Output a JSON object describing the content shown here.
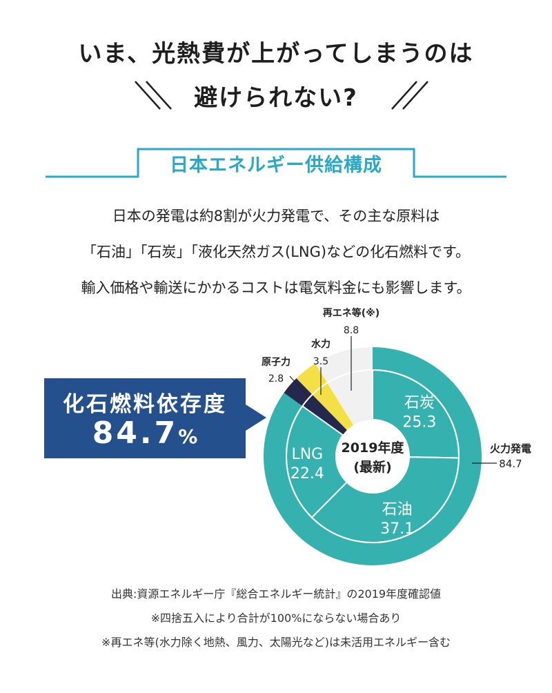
{
  "headline": {
    "line1": "いま、光熱費が上がってしまうのは",
    "line2": "避けられない?"
  },
  "section": {
    "title": "日本エネルギー供給構成"
  },
  "body": {
    "line1": "日本の発電は約8割が火力発電で、その主な原料は",
    "line2": "「石油」「石炭」「液化天然ガス(LNG)などの化石燃料です。",
    "line3": "輸入価格や輸送にかかるコストは電気料金にも影響します。"
  },
  "badge": {
    "label": "化石燃料依存度",
    "value": "84.7",
    "unit": "%"
  },
  "chart_data": {
    "type": "pie",
    "center_label": [
      "2019年度",
      "(最新)"
    ],
    "outer": [
      {
        "name": "火力発電",
        "value": 84.7,
        "color": "#35b2b0"
      },
      {
        "name": "原子力",
        "value": 2.8,
        "color": "#24284e"
      },
      {
        "name": "水力",
        "value": 3.5,
        "color": "#f2e046"
      },
      {
        "name": "再エネ等(※)",
        "value": 8.8,
        "color": "#f1f1f1"
      }
    ],
    "inner": [
      {
        "name": "石炭",
        "value": 25.3,
        "color": "#35b2b0"
      },
      {
        "name": "石油",
        "value": 37.1,
        "color": "#35b2b0"
      },
      {
        "name": "LNG",
        "value": 22.4,
        "color": "#35b2b0"
      }
    ],
    "colors": {
      "fossil": "#35b2b0",
      "nuclear": "#24284e",
      "hydro": "#f2e046",
      "renewable": "#f1f1f1",
      "badge": "#24508e",
      "accent": "#2aa9c6"
    }
  },
  "notes": {
    "line1": "出典:資源エネルギー庁『総合エネルギー統計』の2019年度確認値",
    "line2": "※四捨五入により合計が100%にならない場合あり",
    "line3": "※再エネ等(水力除く地熱、風力、太陽光など)は未活用エネルギー含む"
  }
}
